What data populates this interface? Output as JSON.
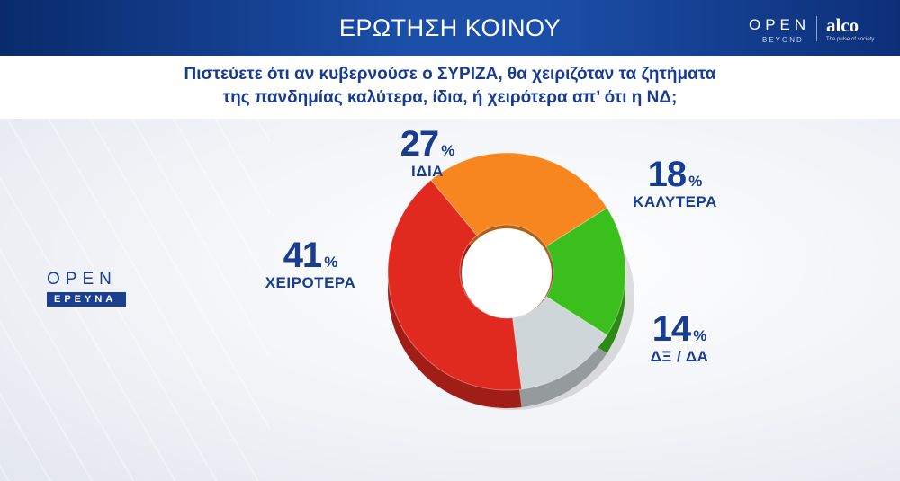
{
  "header": {
    "title": "ΕΡΩΤΗΣΗ ΚΟΙΝΟΥ",
    "brand_open": "OPEN",
    "brand_beyond": "BEYOND",
    "brand_alco": "alco",
    "brand_tagline": "The pulse of society"
  },
  "question": {
    "line1": "Πιστεύετε ότι αν κυβερνούσε ο ΣΥΡΙΖΑ, θα χειριζόταν τα ζητήματα",
    "line2": "της πανδημίας καλύτερα, ίδια, ή χειρότερα απ’ ότι η ΝΔ;"
  },
  "side_logo": {
    "open": "OPEN",
    "ereuna": "ΕΡΕΥΝΑ"
  },
  "chart_data": {
    "type": "pie",
    "style": "donut-3d",
    "unit": "%",
    "slices": [
      {
        "label": "ΙΔΙΑ",
        "value": 27,
        "value_text": "27",
        "color": "#f7861f"
      },
      {
        "label": "ΚΑΛΥΤΕΡΑ",
        "value": 18,
        "value_text": "18",
        "color": "#3bbf1c"
      },
      {
        "label": "ΔΞ / ΔΑ",
        "value": 14,
        "value_text": "14",
        "color": "#cfd6da"
      },
      {
        "label": "ΧΕΙΡΟΤΕΡΑ",
        "value": 41,
        "value_text": "41",
        "color": "#e02a20"
      }
    ]
  }
}
